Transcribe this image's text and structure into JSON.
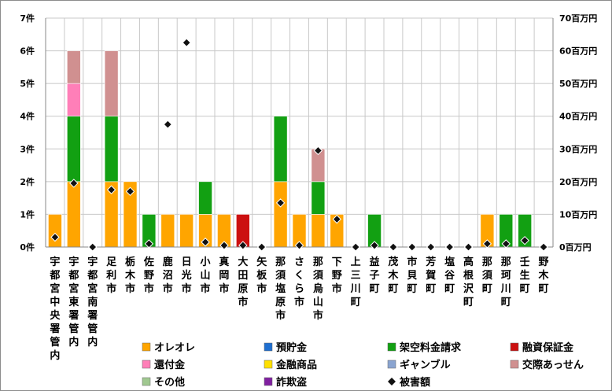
{
  "chart_data": {
    "type": "bar",
    "stacked": true,
    "categories": [
      "宇都宮中央署管内",
      "宇都宮東署管内",
      "宇都宮南署管内",
      "足利市",
      "栃木市",
      "佐野市",
      "鹿沼市",
      "日光市",
      "小山市",
      "真岡市",
      "大田原市",
      "矢板市",
      "那須塩原市",
      "さくら市",
      "那須烏山市",
      "下野市",
      "上三川町",
      "益子町",
      "茂木町",
      "市貝町",
      "芳賀町",
      "塩谷町",
      "高根沢町",
      "那須町",
      "那珂川町",
      "壬生町",
      "野木町"
    ],
    "y_left": {
      "min": 0,
      "max": 7,
      "step": 1,
      "tick_labels": [
        "0件",
        "1件",
        "2件",
        "3件",
        "4件",
        "5件",
        "6件",
        "7件"
      ]
    },
    "y_right": {
      "min": 0,
      "max": 70,
      "step": 10,
      "tick_labels": [
        "0百万円",
        "10百万円",
        "20百万円",
        "30百万円",
        "40百万円",
        "50百万円",
        "60百万円",
        "70百万円"
      ]
    },
    "grid": true,
    "legend_position": "bottom",
    "series": [
      {
        "name": "オレオレ",
        "color": "#FFA500",
        "values": [
          1,
          2,
          0,
          2,
          2,
          0,
          1,
          1,
          1,
          1,
          0,
          0,
          2,
          1,
          1,
          1,
          0,
          0,
          0,
          0,
          0,
          0,
          0,
          1,
          0,
          0,
          0
        ]
      },
      {
        "name": "預貯金",
        "color": "#1F6FD0",
        "values": [
          0,
          0,
          0,
          0,
          0,
          0,
          0,
          0,
          0,
          0,
          0,
          0,
          0,
          0,
          0,
          0,
          0,
          0,
          0,
          0,
          0,
          0,
          0,
          0,
          0,
          0,
          0
        ]
      },
      {
        "name": "架空料金請求",
        "color": "#12A012",
        "values": [
          0,
          2,
          0,
          2,
          0,
          1,
          0,
          0,
          1,
          0,
          0,
          0,
          2,
          0,
          1,
          0,
          0,
          1,
          0,
          0,
          0,
          0,
          0,
          0,
          1,
          1,
          0
        ]
      },
      {
        "name": "融資保証金",
        "color": "#CC1010",
        "values": [
          0,
          0,
          0,
          0,
          0,
          0,
          0,
          0,
          0,
          0,
          1,
          0,
          0,
          0,
          0,
          0,
          0,
          0,
          0,
          0,
          0,
          0,
          0,
          0,
          0,
          0,
          0
        ]
      },
      {
        "name": "還付金",
        "color": "#FF7FB8",
        "values": [
          0,
          1,
          0,
          0,
          0,
          0,
          0,
          0,
          0,
          0,
          0,
          0,
          0,
          0,
          0,
          0,
          0,
          0,
          0,
          0,
          0,
          0,
          0,
          0,
          0,
          0,
          0
        ]
      },
      {
        "name": "金融商品",
        "color": "#FFE000",
        "values": [
          0,
          0,
          0,
          0,
          0,
          0,
          0,
          0,
          0,
          0,
          0,
          0,
          0,
          0,
          0,
          0,
          0,
          0,
          0,
          0,
          0,
          0,
          0,
          0,
          0,
          0,
          0
        ]
      },
      {
        "name": "ギャンブル",
        "color": "#8AA4D0",
        "values": [
          0,
          0,
          0,
          0,
          0,
          0,
          0,
          0,
          0,
          0,
          0,
          0,
          0,
          0,
          0,
          0,
          0,
          0,
          0,
          0,
          0,
          0,
          0,
          0,
          0,
          0,
          0
        ]
      },
      {
        "name": "交際あっせん",
        "color": "#D09090",
        "values": [
          0,
          1,
          0,
          2,
          0,
          0,
          0,
          0,
          0,
          0,
          0,
          0,
          0,
          0,
          1,
          0,
          0,
          0,
          0,
          0,
          0,
          0,
          0,
          0,
          0,
          0,
          0
        ]
      },
      {
        "name": "その他",
        "color": "#A0C890",
        "values": [
          0,
          0,
          0,
          0,
          0,
          0,
          0,
          0,
          0,
          0,
          0,
          0,
          0,
          0,
          0,
          0,
          0,
          0,
          0,
          0,
          0,
          0,
          0,
          0,
          0,
          0,
          0
        ]
      },
      {
        "name": "詐欺盗",
        "color": "#8020A0",
        "values": [
          0,
          0,
          0,
          0,
          0,
          0,
          0,
          0,
          0,
          0,
          0,
          0,
          0,
          0,
          0,
          0,
          0,
          0,
          0,
          0,
          0,
          0,
          0,
          0,
          0,
          0,
          0
        ]
      }
    ],
    "line_series": {
      "name": "被害額",
      "color": "#000000",
      "marker": "diamond",
      "axis": "right",
      "values": [
        3,
        19.5,
        0,
        17.5,
        17,
        1,
        37.5,
        62.5,
        1.5,
        0.5,
        0.5,
        0,
        13.5,
        0.5,
        29.5,
        8.5,
        0,
        0.5,
        0,
        0,
        0,
        0,
        0,
        1,
        1,
        2,
        0
      ]
    }
  }
}
